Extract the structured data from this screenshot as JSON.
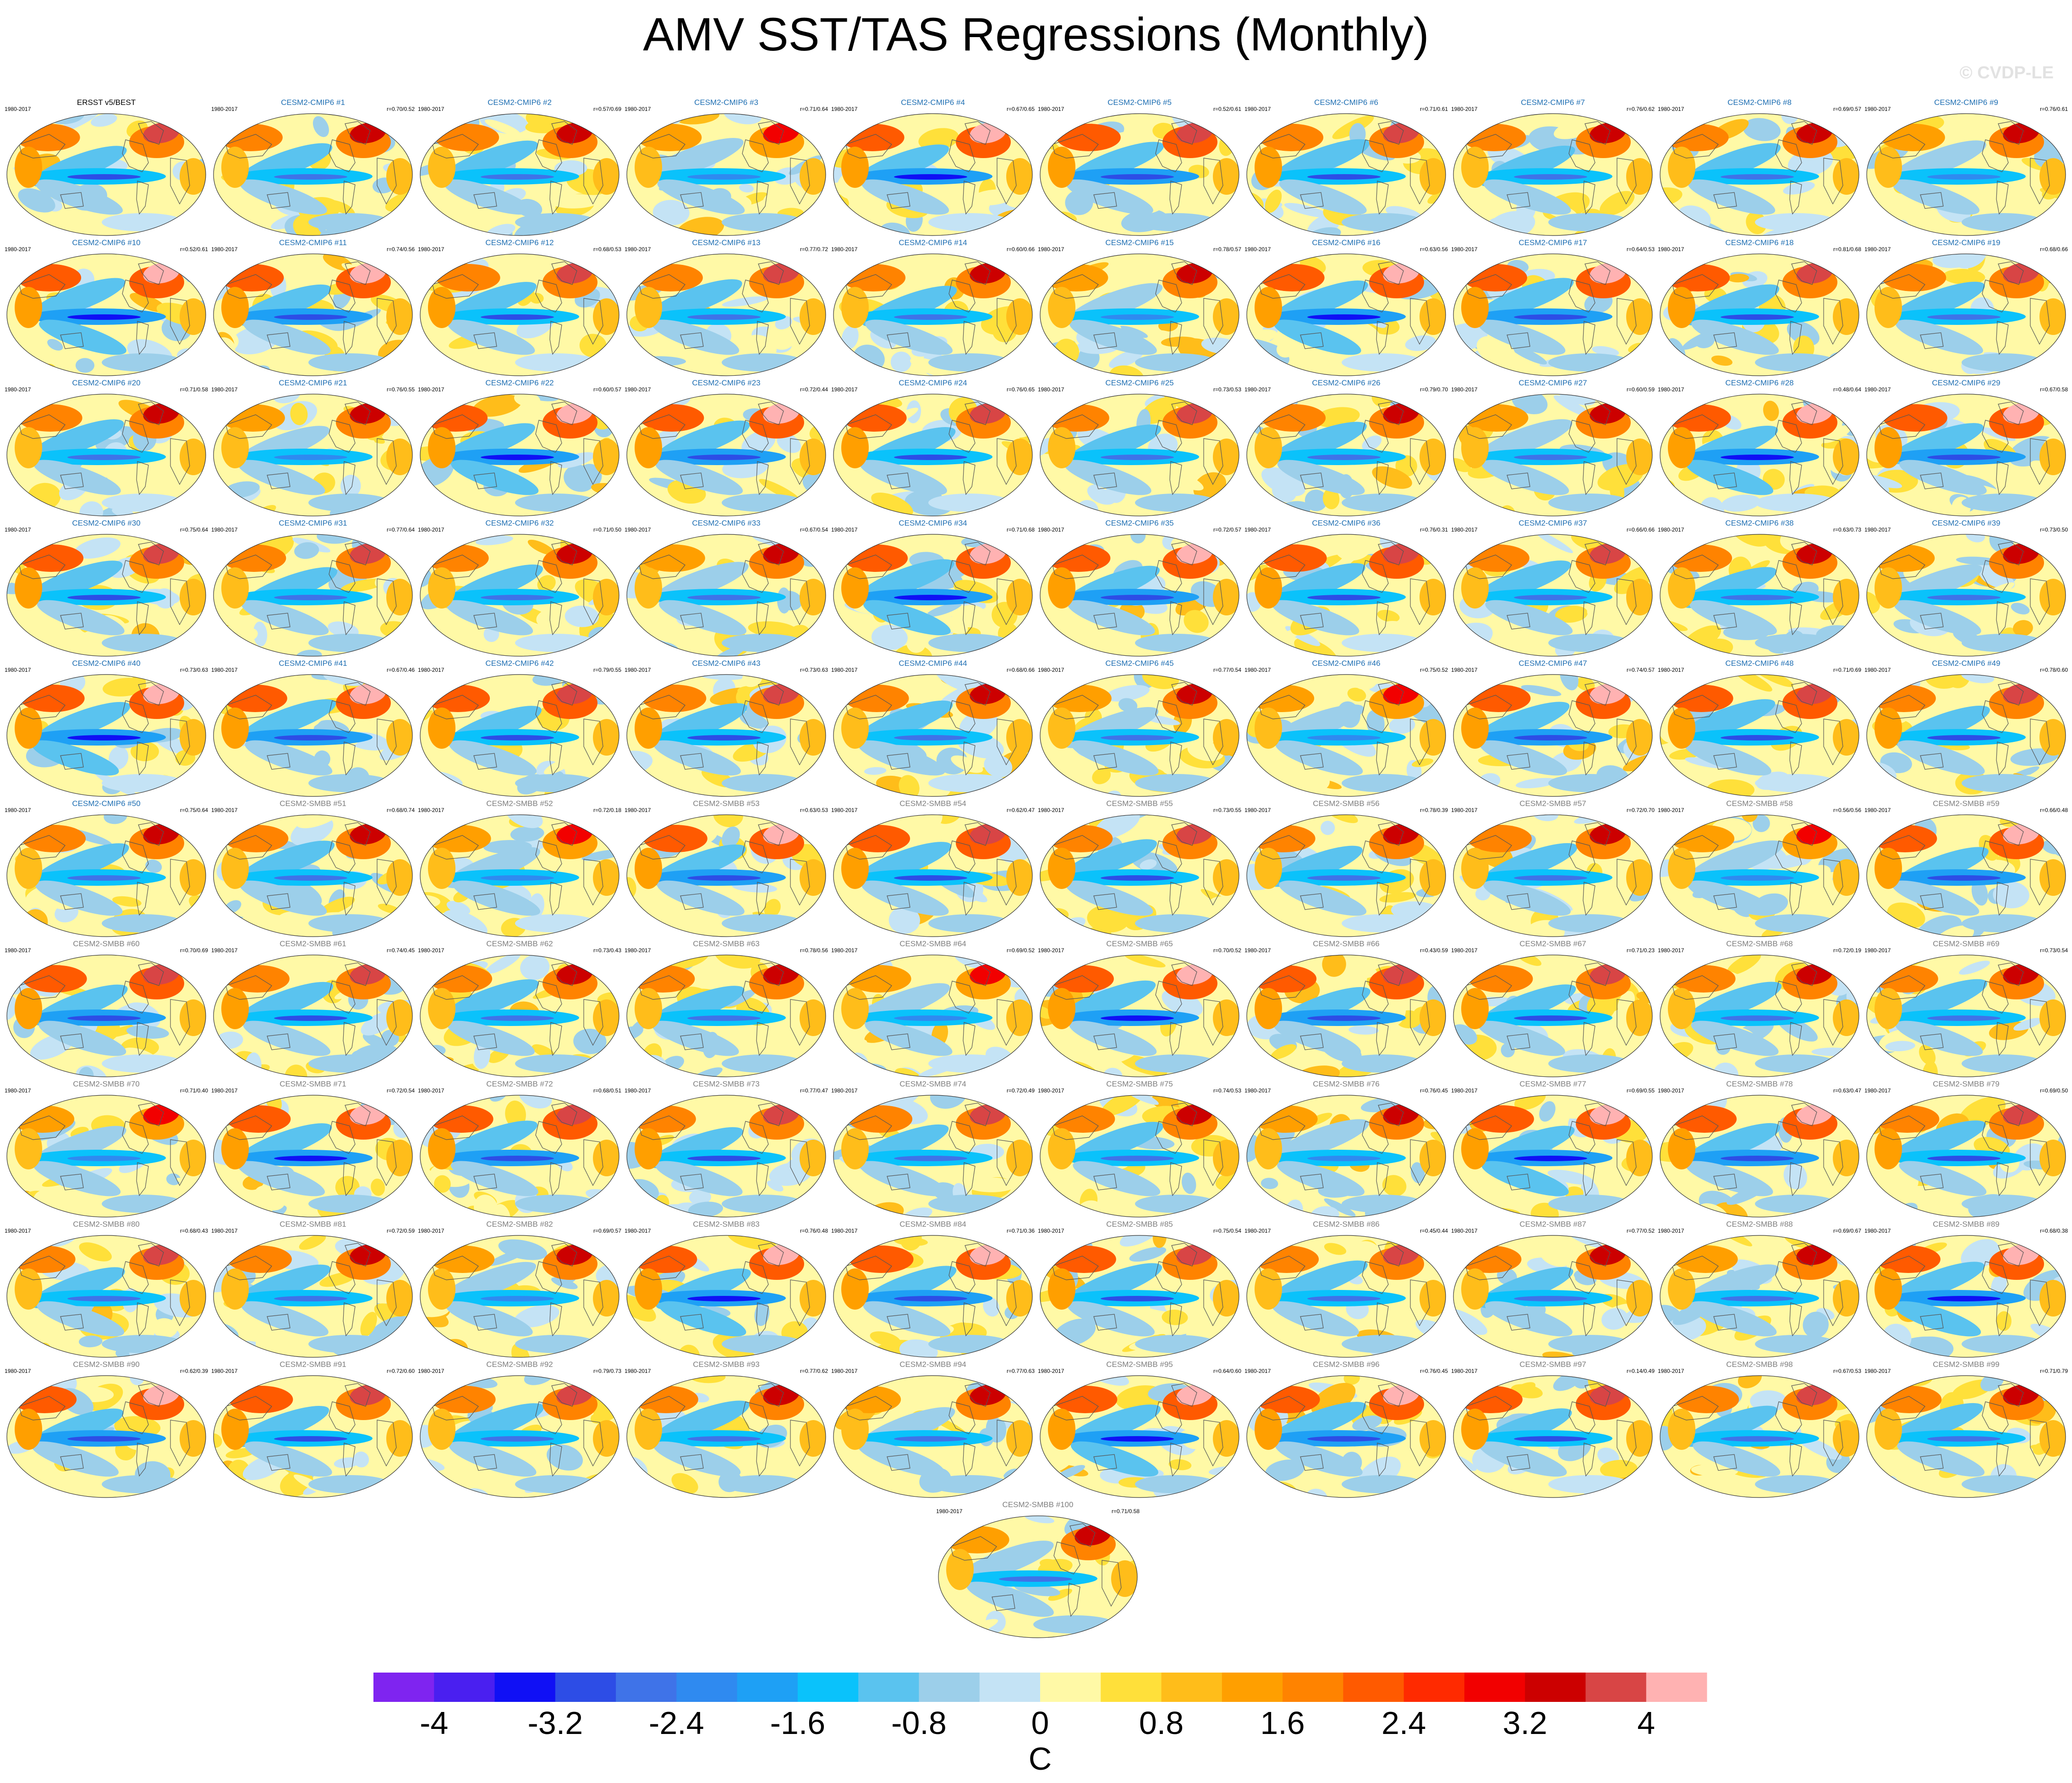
{
  "title": "AMV SST/TAS Regressions (Monthly)",
  "watermark": "© CVDP-LE",
  "colors": {
    "obs_title": "#000000",
    "cmip6_title": "#1f6fb3",
    "smbb_title": "#7f7f7f"
  },
  "chart_data": {
    "type": "heatmap",
    "period": "1980-2017",
    "panels": [
      {
        "title": "ERSST v5/BEST",
        "period": "1980-2017",
        "corr": "",
        "group": "obs"
      },
      {
        "title": "CESM2-CMIP6 #1",
        "period": "1980-2017",
        "corr": "r=0.70/0.52",
        "group": "cmip6"
      },
      {
        "title": "CESM2-CMIP6 #2",
        "period": "1980-2017",
        "corr": "r=0.57/0.69",
        "group": "cmip6"
      },
      {
        "title": "CESM2-CMIP6 #3",
        "period": "1980-2017",
        "corr": "r=0.71/0.64",
        "group": "cmip6"
      },
      {
        "title": "CESM2-CMIP6 #4",
        "period": "1980-2017",
        "corr": "r=0.67/0.65",
        "group": "cmip6"
      },
      {
        "title": "CESM2-CMIP6 #5",
        "period": "1980-2017",
        "corr": "r=0.52/0.61",
        "group": "cmip6"
      },
      {
        "title": "CESM2-CMIP6 #6",
        "period": "1980-2017",
        "corr": "r=0.71/0.61",
        "group": "cmip6"
      },
      {
        "title": "CESM2-CMIP6 #7",
        "period": "1980-2017",
        "corr": "r=0.76/0.62",
        "group": "cmip6"
      },
      {
        "title": "CESM2-CMIP6 #8",
        "period": "1980-2017",
        "corr": "r=0.69/0.57",
        "group": "cmip6"
      },
      {
        "title": "CESM2-CMIP6 #9",
        "period": "1980-2017",
        "corr": "r=0.76/0.61",
        "group": "cmip6"
      },
      {
        "title": "CESM2-CMIP6 #10",
        "period": "1980-2017",
        "corr": "r=0.52/0.61",
        "group": "cmip6"
      },
      {
        "title": "CESM2-CMIP6 #11",
        "period": "1980-2017",
        "corr": "r=0.74/0.56",
        "group": "cmip6"
      },
      {
        "title": "CESM2-CMIP6 #12",
        "period": "1980-2017",
        "corr": "r=0.68/0.53",
        "group": "cmip6"
      },
      {
        "title": "CESM2-CMIP6 #13",
        "period": "1980-2017",
        "corr": "r=0.77/0.72",
        "group": "cmip6"
      },
      {
        "title": "CESM2-CMIP6 #14",
        "period": "1980-2017",
        "corr": "r=0.60/0.66",
        "group": "cmip6"
      },
      {
        "title": "CESM2-CMIP6 #15",
        "period": "1980-2017",
        "corr": "r=0.78/0.57",
        "group": "cmip6"
      },
      {
        "title": "CESM2-CMIP6 #16",
        "period": "1980-2017",
        "corr": "r=0.63/0.56",
        "group": "cmip6"
      },
      {
        "title": "CESM2-CMIP6 #17",
        "period": "1980-2017",
        "corr": "r=0.64/0.53",
        "group": "cmip6"
      },
      {
        "title": "CESM2-CMIP6 #18",
        "period": "1980-2017",
        "corr": "r=0.81/0.68",
        "group": "cmip6"
      },
      {
        "title": "CESM2-CMIP6 #19",
        "period": "1980-2017",
        "corr": "r=0.68/0.66",
        "group": "cmip6"
      },
      {
        "title": "CESM2-CMIP6 #20",
        "period": "1980-2017",
        "corr": "r=0.71/0.58",
        "group": "cmip6"
      },
      {
        "title": "CESM2-CMIP6 #21",
        "period": "1980-2017",
        "corr": "r=0.76/0.55",
        "group": "cmip6"
      },
      {
        "title": "CESM2-CMIP6 #22",
        "period": "1980-2017",
        "corr": "r=0.60/0.57",
        "group": "cmip6"
      },
      {
        "title": "CESM2-CMIP6 #23",
        "period": "1980-2017",
        "corr": "r=0.72/0.44",
        "group": "cmip6"
      },
      {
        "title": "CESM2-CMIP6 #24",
        "period": "1980-2017",
        "corr": "r=0.76/0.65",
        "group": "cmip6"
      },
      {
        "title": "CESM2-CMIP6 #25",
        "period": "1980-2017",
        "corr": "r=0.73/0.53",
        "group": "cmip6"
      },
      {
        "title": "CESM2-CMIP6 #26",
        "period": "1980-2017",
        "corr": "r=0.79/0.70",
        "group": "cmip6"
      },
      {
        "title": "CESM2-CMIP6 #27",
        "period": "1980-2017",
        "corr": "r=0.60/0.59",
        "group": "cmip6"
      },
      {
        "title": "CESM2-CMIP6 #28",
        "period": "1980-2017",
        "corr": "r=0.48/0.64",
        "group": "cmip6"
      },
      {
        "title": "CESM2-CMIP6 #29",
        "period": "1980-2017",
        "corr": "r=0.67/0.58",
        "group": "cmip6"
      },
      {
        "title": "CESM2-CMIP6 #30",
        "period": "1980-2017",
        "corr": "r=0.75/0.64",
        "group": "cmip6"
      },
      {
        "title": "CESM2-CMIP6 #31",
        "period": "1980-2017",
        "corr": "r=0.77/0.64",
        "group": "cmip6"
      },
      {
        "title": "CESM2-CMIP6 #32",
        "period": "1980-2017",
        "corr": "r=0.71/0.50",
        "group": "cmip6"
      },
      {
        "title": "CESM2-CMIP6 #33",
        "period": "1980-2017",
        "corr": "r=0.67/0.54",
        "group": "cmip6"
      },
      {
        "title": "CESM2-CMIP6 #34",
        "period": "1980-2017",
        "corr": "r=0.71/0.68",
        "group": "cmip6"
      },
      {
        "title": "CESM2-CMIP6 #35",
        "period": "1980-2017",
        "corr": "r=0.72/0.57",
        "group": "cmip6"
      },
      {
        "title": "CESM2-CMIP6 #36",
        "period": "1980-2017",
        "corr": "r=0.76/0.31",
        "group": "cmip6"
      },
      {
        "title": "CESM2-CMIP6 #37",
        "period": "1980-2017",
        "corr": "r=0.66/0.66",
        "group": "cmip6"
      },
      {
        "title": "CESM2-CMIP6 #38",
        "period": "1980-2017",
        "corr": "r=0.63/0.73",
        "group": "cmip6"
      },
      {
        "title": "CESM2-CMIP6 #39",
        "period": "1980-2017",
        "corr": "r=0.73/0.50",
        "group": "cmip6"
      },
      {
        "title": "CESM2-CMIP6 #40",
        "period": "1980-2017",
        "corr": "r=0.73/0.63",
        "group": "cmip6"
      },
      {
        "title": "CESM2-CMIP6 #41",
        "period": "1980-2017",
        "corr": "r=0.67/0.46",
        "group": "cmip6"
      },
      {
        "title": "CESM2-CMIP6 #42",
        "period": "1980-2017",
        "corr": "r=0.79/0.55",
        "group": "cmip6"
      },
      {
        "title": "CESM2-CMIP6 #43",
        "period": "1980-2017",
        "corr": "r=0.73/0.63",
        "group": "cmip6"
      },
      {
        "title": "CESM2-CMIP6 #44",
        "period": "1980-2017",
        "corr": "r=0.68/0.66",
        "group": "cmip6"
      },
      {
        "title": "CESM2-CMIP6 #45",
        "period": "1980-2017",
        "corr": "r=0.77/0.54",
        "group": "cmip6"
      },
      {
        "title": "CESM2-CMIP6 #46",
        "period": "1980-2017",
        "corr": "r=0.75/0.52",
        "group": "cmip6"
      },
      {
        "title": "CESM2-CMIP6 #47",
        "period": "1980-2017",
        "corr": "r=0.74/0.57",
        "group": "cmip6"
      },
      {
        "title": "CESM2-CMIP6 #48",
        "period": "1980-2017",
        "corr": "r=0.71/0.69",
        "group": "cmip6"
      },
      {
        "title": "CESM2-CMIP6 #49",
        "period": "1980-2017",
        "corr": "r=0.78/0.60",
        "group": "cmip6"
      },
      {
        "title": "CESM2-CMIP6 #50",
        "period": "1980-2017",
        "corr": "r=0.75/0.64",
        "group": "cmip6"
      },
      {
        "title": "CESM2-SMBB #51",
        "period": "1980-2017",
        "corr": "r=0.68/0.74",
        "group": "smbb"
      },
      {
        "title": "CESM2-SMBB #52",
        "period": "1980-2017",
        "corr": "r=0.72/0.18",
        "group": "smbb"
      },
      {
        "title": "CESM2-SMBB #53",
        "period": "1980-2017",
        "corr": "r=0.63/0.53",
        "group": "smbb"
      },
      {
        "title": "CESM2-SMBB #54",
        "period": "1980-2017",
        "corr": "r=0.62/0.47",
        "group": "smbb"
      },
      {
        "title": "CESM2-SMBB #55",
        "period": "1980-2017",
        "corr": "r=0.73/0.55",
        "group": "smbb"
      },
      {
        "title": "CESM2-SMBB #56",
        "period": "1980-2017",
        "corr": "r=0.78/0.39",
        "group": "smbb"
      },
      {
        "title": "CESM2-SMBB #57",
        "period": "1980-2017",
        "corr": "r=0.72/0.70",
        "group": "smbb"
      },
      {
        "title": "CESM2-SMBB #58",
        "period": "1980-2017",
        "corr": "r=0.56/0.56",
        "group": "smbb"
      },
      {
        "title": "CESM2-SMBB #59",
        "period": "1980-2017",
        "corr": "r=0.66/0.48",
        "group": "smbb"
      },
      {
        "title": "CESM2-SMBB #60",
        "period": "1980-2017",
        "corr": "r=0.70/0.69",
        "group": "smbb"
      },
      {
        "title": "CESM2-SMBB #61",
        "period": "1980-2017",
        "corr": "r=0.74/0.45",
        "group": "smbb"
      },
      {
        "title": "CESM2-SMBB #62",
        "period": "1980-2017",
        "corr": "r=0.73/0.43",
        "group": "smbb"
      },
      {
        "title": "CESM2-SMBB #63",
        "period": "1980-2017",
        "corr": "r=0.78/0.56",
        "group": "smbb"
      },
      {
        "title": "CESM2-SMBB #64",
        "period": "1980-2017",
        "corr": "r=0.69/0.52",
        "group": "smbb"
      },
      {
        "title": "CESM2-SMBB #65",
        "period": "1980-2017",
        "corr": "r=0.70/0.52",
        "group": "smbb"
      },
      {
        "title": "CESM2-SMBB #66",
        "period": "1980-2017",
        "corr": "r=0.43/0.59",
        "group": "smbb"
      },
      {
        "title": "CESM2-SMBB #67",
        "period": "1980-2017",
        "corr": "r=0.71/0.23",
        "group": "smbb"
      },
      {
        "title": "CESM2-SMBB #68",
        "period": "1980-2017",
        "corr": "r=0.72/0.19",
        "group": "smbb"
      },
      {
        "title": "CESM2-SMBB #69",
        "period": "1980-2017",
        "corr": "r=0.73/0.54",
        "group": "smbb"
      },
      {
        "title": "CESM2-SMBB #70",
        "period": "1980-2017",
        "corr": "r=0.71/0.40",
        "group": "smbb"
      },
      {
        "title": "CESM2-SMBB #71",
        "period": "1980-2017",
        "corr": "r=0.72/0.54",
        "group": "smbb"
      },
      {
        "title": "CESM2-SMBB #72",
        "period": "1980-2017",
        "corr": "r=0.68/0.51",
        "group": "smbb"
      },
      {
        "title": "CESM2-SMBB #73",
        "period": "1980-2017",
        "corr": "r=0.77/0.47",
        "group": "smbb"
      },
      {
        "title": "CESM2-SMBB #74",
        "period": "1980-2017",
        "corr": "r=0.72/0.49",
        "group": "smbb"
      },
      {
        "title": "CESM2-SMBB #75",
        "period": "1980-2017",
        "corr": "r=0.74/0.53",
        "group": "smbb"
      },
      {
        "title": "CESM2-SMBB #76",
        "period": "1980-2017",
        "corr": "r=0.76/0.45",
        "group": "smbb"
      },
      {
        "title": "CESM2-SMBB #77",
        "period": "1980-2017",
        "corr": "r=0.69/0.55",
        "group": "smbb"
      },
      {
        "title": "CESM2-SMBB #78",
        "period": "1980-2017",
        "corr": "r=0.63/0.47",
        "group": "smbb"
      },
      {
        "title": "CESM2-SMBB #79",
        "period": "1980-2017",
        "corr": "r=0.69/0.50",
        "group": "smbb"
      },
      {
        "title": "CESM2-SMBB #80",
        "period": "1980-2017",
        "corr": "r=0.68/0.43",
        "group": "smbb"
      },
      {
        "title": "CESM2-SMBB #81",
        "period": "1980-2017",
        "corr": "r=0.72/0.59",
        "group": "smbb"
      },
      {
        "title": "CESM2-SMBB #82",
        "period": "1980-2017",
        "corr": "r=0.69/0.57",
        "group": "smbb"
      },
      {
        "title": "CESM2-SMBB #83",
        "period": "1980-2017",
        "corr": "r=0.76/0.48",
        "group": "smbb"
      },
      {
        "title": "CESM2-SMBB #84",
        "period": "1980-2017",
        "corr": "r=0.71/0.36",
        "group": "smbb"
      },
      {
        "title": "CESM2-SMBB #85",
        "period": "1980-2017",
        "corr": "r=0.75/0.54",
        "group": "smbb"
      },
      {
        "title": "CESM2-SMBB #86",
        "period": "1980-2017",
        "corr": "r=0.45/0.44",
        "group": "smbb"
      },
      {
        "title": "CESM2-SMBB #87",
        "period": "1980-2017",
        "corr": "r=0.77/0.52",
        "group": "smbb"
      },
      {
        "title": "CESM2-SMBB #88",
        "period": "1980-2017",
        "corr": "r=0.69/0.67",
        "group": "smbb"
      },
      {
        "title": "CESM2-SMBB #89",
        "period": "1980-2017",
        "corr": "r=0.68/0.38",
        "group": "smbb"
      },
      {
        "title": "CESM2-SMBB #90",
        "period": "1980-2017",
        "corr": "r=0.62/0.39",
        "group": "smbb"
      },
      {
        "title": "CESM2-SMBB #91",
        "period": "1980-2017",
        "corr": "r=0.72/0.60",
        "group": "smbb"
      },
      {
        "title": "CESM2-SMBB #92",
        "period": "1980-2017",
        "corr": "r=0.79/0.73",
        "group": "smbb"
      },
      {
        "title": "CESM2-SMBB #93",
        "period": "1980-2017",
        "corr": "r=0.77/0.62",
        "group": "smbb"
      },
      {
        "title": "CESM2-SMBB #94",
        "period": "1980-2017",
        "corr": "r=0.77/0.63",
        "group": "smbb"
      },
      {
        "title": "CESM2-SMBB #95",
        "period": "1980-2017",
        "corr": "r=0.64/0.60",
        "group": "smbb"
      },
      {
        "title": "CESM2-SMBB #96",
        "period": "1980-2017",
        "corr": "r=0.76/0.45",
        "group": "smbb"
      },
      {
        "title": "CESM2-SMBB #97",
        "period": "1980-2017",
        "corr": "r=0.14/0.49",
        "group": "smbb"
      },
      {
        "title": "CESM2-SMBB #98",
        "period": "1980-2017",
        "corr": "r=0.67/0.53",
        "group": "smbb"
      },
      {
        "title": "CESM2-SMBB #99",
        "period": "1980-2017",
        "corr": "r=0.71/0.79",
        "group": "smbb"
      },
      {
        "title": "CESM2-SMBB #100",
        "period": "1980-2017",
        "corr": "r=0.71/0.58",
        "group": "smbb"
      }
    ],
    "colorbar": {
      "min": -4.4,
      "max": 4.4,
      "step": 0.4,
      "tick_labels": [
        "-4",
        "-3.2",
        "-2.4",
        "-1.6",
        "-0.8",
        "0",
        "0.8",
        "1.6",
        "2.4",
        "3.2",
        "4"
      ],
      "tick_values": [
        -4,
        -3.2,
        -2.4,
        -1.6,
        -0.8,
        0,
        0.8,
        1.6,
        2.4,
        3.2,
        4
      ],
      "units": "C",
      "colors": [
        "#7f24f0",
        "#4a1ff0",
        "#1010f5",
        "#2d4de6",
        "#3f73e8",
        "#2f8af0",
        "#1ea0f5",
        "#0ac2fb",
        "#5ac3ef",
        "#9ccfea",
        "#c4e3f5",
        "#fff9a6",
        "#ffe03a",
        "#ffbd1a",
        "#ff9f00",
        "#ff8300",
        "#ff5a00",
        "#ff2a00",
        "#f20000",
        "#cc0000",
        "#d84545",
        "#ffb2b2"
      ]
    }
  }
}
